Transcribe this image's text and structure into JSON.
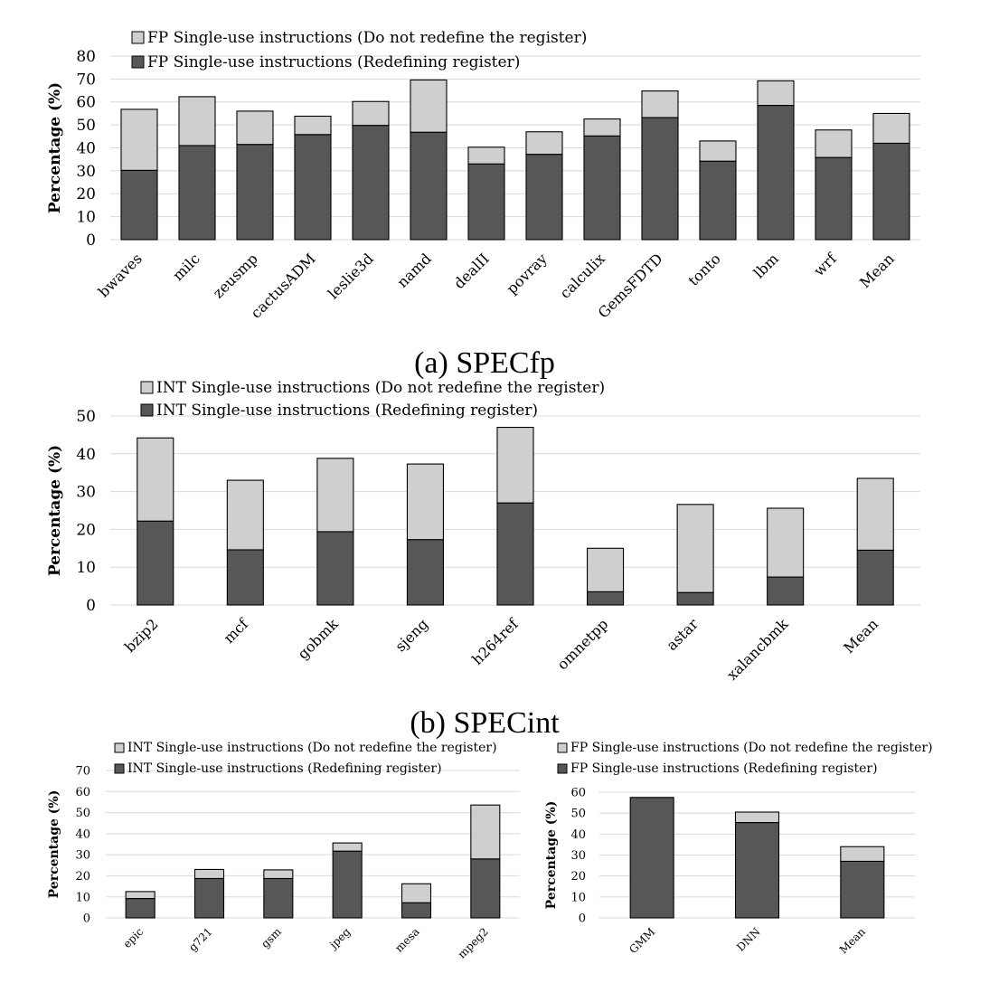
{
  "colors": {
    "light": "#d0cfd0",
    "dark": "#575757",
    "grid": "#d9d9d9"
  },
  "captions": {
    "a": "(a) SPECfp",
    "b": "(b) SPECint"
  },
  "chart_data": [
    {
      "id": "a",
      "type": "bar",
      "stacked": true,
      "ylabel": "Percentage (%)",
      "ylim": [
        0,
        80
      ],
      "ystep": 10,
      "grid": true,
      "legend": "top-left",
      "categories": [
        "bwaves",
        "milc",
        "zeusmp",
        "cactusADM",
        "leslie3d",
        "namd",
        "dealII",
        "povray",
        "calculix",
        "GemsFDTD",
        "tonto",
        "lbm",
        "wrf",
        "Mean"
      ],
      "series": [
        {
          "name": "FP Single-use instructions (Redefining register)",
          "values": [
            30.2,
            41,
            41.5,
            45.8,
            49.8,
            46.8,
            33,
            37.2,
            45.2,
            53.2,
            34.2,
            58.5,
            35.8,
            42
          ]
        },
        {
          "name": "FP Single-use instructions (Do not redefine the register)",
          "values": [
            26.6,
            21.3,
            14.5,
            8,
            10.4,
            22.8,
            7.3,
            9.8,
            7.4,
            11.6,
            8.8,
            10.7,
            12,
            13
          ]
        }
      ]
    },
    {
      "id": "b",
      "type": "bar",
      "stacked": true,
      "ylabel": "Percentage (%)",
      "ylim": [
        0,
        50
      ],
      "ystep": 10,
      "grid": true,
      "legend": "top-left",
      "categories": [
        "bzip2",
        "mcf",
        "gobmk",
        "sjeng",
        "h264ref",
        "omnetpp",
        "astar",
        "xalancbmk",
        "Mean"
      ],
      "series": [
        {
          "name": "INT Single-use instructions (Redefining register)",
          "values": [
            22.2,
            14.6,
            19.4,
            17.3,
            27,
            3.5,
            3.3,
            7.4,
            14.5
          ]
        },
        {
          "name": "INT Single-use instructions (Do not redefine the register)",
          "values": [
            22,
            18.4,
            19.4,
            20,
            20,
            11.5,
            23.3,
            18.2,
            19
          ]
        }
      ]
    },
    {
      "id": "c",
      "type": "bar",
      "stacked": true,
      "ylabel": "Percentage (%)",
      "ylim": [
        0,
        70
      ],
      "ystep": 10,
      "grid": true,
      "legend": "top-left",
      "categories": [
        "epic",
        "g721",
        "gsm",
        "jpeg",
        "mesa",
        "mpeg2"
      ],
      "series": [
        {
          "name": "INT Single-use instructions (Redefining register)",
          "values": [
            9.2,
            18.7,
            18.7,
            31.7,
            7.2,
            28
          ]
        },
        {
          "name": "INT Single-use instructions (Do not redefine the register)",
          "values": [
            3.3,
            4.3,
            4.1,
            3.9,
            9,
            25.6
          ]
        }
      ]
    },
    {
      "id": "d",
      "type": "bar",
      "stacked": true,
      "ylabel": "Percentage (%)",
      "ylim": [
        0,
        60
      ],
      "ystep": 10,
      "grid": true,
      "legend": "top-left",
      "categories": [
        "GMM",
        "DNN",
        "Mean"
      ],
      "series": [
        {
          "name": "FP Single-use instructions (Redefining register)",
          "values": [
            57.5,
            45.5,
            27
          ]
        },
        {
          "name": "FP Single-use instructions (Do not redefine the register)",
          "values": [
            0,
            5,
            7
          ]
        }
      ]
    }
  ]
}
